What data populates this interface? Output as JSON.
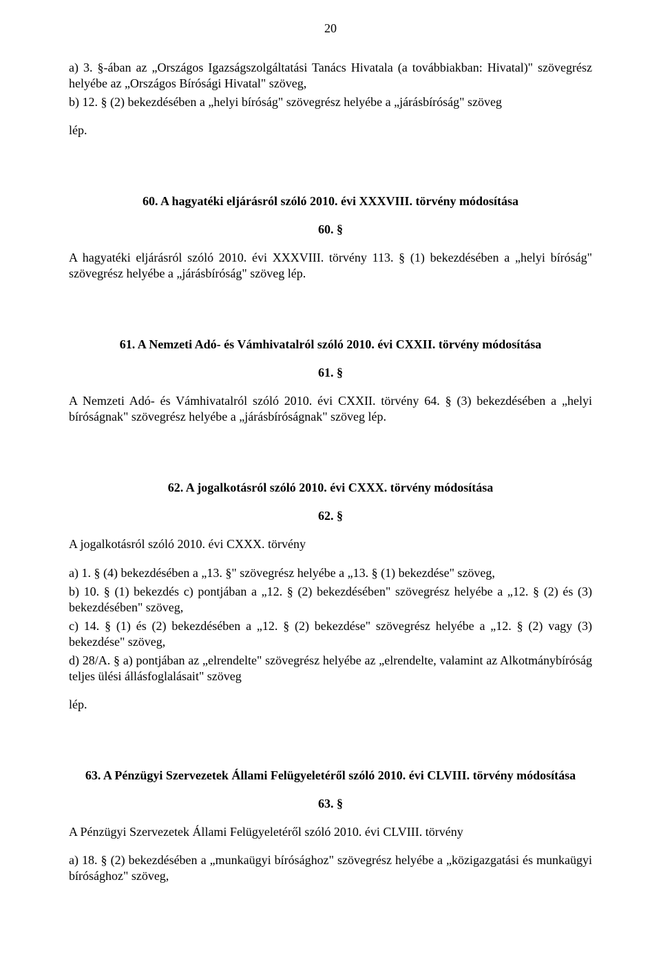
{
  "pageNumber": "20",
  "p1": "a) 3. §-ában az „Országos Igazságszolgáltatási Tanács Hivatala (a továbbiakban: Hivatal)\" szövegrész helyébe az „Országos Bírósági Hivatal\" szöveg,",
  "p2": "b) 12. § (2) bekezdésében a „helyi bíróság\" szövegrész helyébe a „járásbíróság\" szöveg",
  "p3": "lép.",
  "h60": "60. A hagyatéki eljárásról szóló 2010. évi XXXVIII. törvény módosítása",
  "s60": "60. §",
  "p4": "A hagyatéki eljárásról szóló 2010. évi XXXVIII. törvény 113. § (1) bekezdésében a „helyi bíróság\" szövegrész helyébe a „járásbíróság\" szöveg lép.",
  "h61": "61. A Nemzeti Adó- és Vámhivatalról szóló 2010. évi CXXII. törvény módosítása",
  "s61": "61. §",
  "p5": "A Nemzeti Adó- és Vámhivatalról szóló 2010. évi CXXII. törvény 64. § (3) bekezdésében a „helyi bíróságnak\" szövegrész helyébe a „járásbíróságnak\" szöveg lép.",
  "h62": "62. A jogalkotásról szóló 2010. évi CXXX. törvény módosítása",
  "s62": "62. §",
  "p6": "A jogalkotásról szóló 2010. évi CXXX. törvény",
  "p7a": "a) 1. § (4) bekezdésében a „13. §\" szövegrész helyébe a „13. § (1) bekezdése\" szöveg,",
  "p7b": "b) 10. § (1) bekezdés c) pontjában a „12. § (2) bekezdésében\" szövegrész helyébe a „12. § (2) és (3) bekezdésében\" szöveg,",
  "p7c": "c) 14. § (1) és (2) bekezdésében a „12. § (2) bekezdése\" szövegrész helyébe a „12. § (2) vagy (3) bekezdése\" szöveg,",
  "p7d": "d) 28/A. § a) pontjában az „elrendelte\" szövegrész helyébe az „elrendelte, valamint az Alkotmánybíróság teljes ülési állásfoglalásait\" szöveg",
  "p8": "lép.",
  "h63": "63. A Pénzügyi Szervezetek Állami Felügyeletéről szóló 2010. évi CLVIII. törvény módosítása",
  "s63": "63. §",
  "p9": "A Pénzügyi Szervezetek Állami Felügyeletéről szóló 2010. évi CLVIII. törvény",
  "p10": "a) 18. § (2) bekezdésében a „munkaügyi bírósághoz\" szövegrész helyébe a „közigazgatási és munkaügyi bírósághoz\" szöveg,"
}
